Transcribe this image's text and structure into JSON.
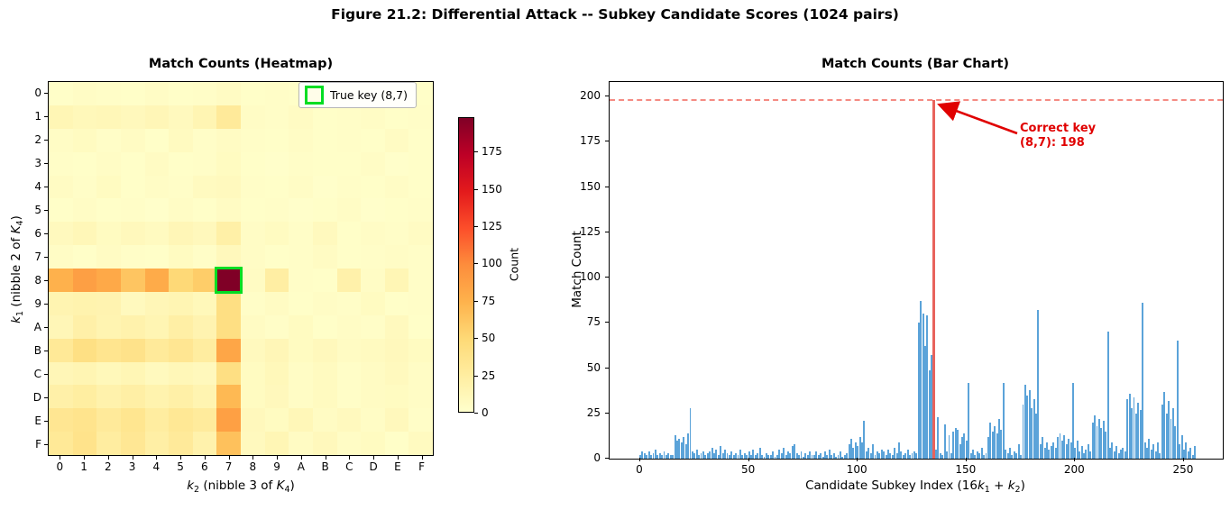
{
  "figure": {
    "title": "Figure 21.2: Differential Attack -- Subkey Candidate Scores (1024 pairs)"
  },
  "colors": {
    "bar_fill": "#5ba3d9",
    "vline": "#e8635c",
    "dashed_line": "#f4776e",
    "annotation_red": "#e00000",
    "true_key_green": "#00dd22",
    "colormap_name": "YlOrRd",
    "colormap_stops": [
      "#ffffcc",
      "#ffeda0",
      "#fed976",
      "#feb24c",
      "#fd8d3c",
      "#fc4e2a",
      "#e31a1c",
      "#bd0026",
      "#800026"
    ]
  },
  "chart_data": [
    {
      "type": "heatmap",
      "title": "Match Counts (Heatmap)",
      "xlabel_text": "k2 (nibble 3 of K4)",
      "ylabel_text": "k1 (nibble 2 of K4)",
      "xticks": [
        "0",
        "1",
        "2",
        "3",
        "4",
        "5",
        "6",
        "7",
        "8",
        "9",
        "A",
        "B",
        "C",
        "D",
        "E",
        "F"
      ],
      "yticks": [
        "0",
        "1",
        "2",
        "3",
        "4",
        "5",
        "6",
        "7",
        "8",
        "9",
        "A",
        "B",
        "C",
        "D",
        "E",
        "F"
      ],
      "vmin": 0,
      "vmax": 198,
      "colorbar": {
        "label": "Count",
        "ticks": [
          0,
          25,
          50,
          75,
          100,
          125,
          150,
          175
        ]
      },
      "legend": {
        "label": "True key (8,7)"
      },
      "true_key": {
        "k1": 8,
        "k2": 7,
        "value": 198
      },
      "values": [
        [
          2,
          4,
          3,
          2,
          4,
          2,
          3,
          5,
          2,
          3,
          2,
          4,
          2,
          3,
          2,
          2
        ],
        [
          13,
          10,
          11,
          9,
          12,
          8,
          14,
          28,
          4,
          3,
          5,
          2,
          3,
          4,
          2,
          3
        ],
        [
          4,
          6,
          3,
          5,
          2,
          7,
          3,
          5,
          3,
          2,
          4,
          2,
          3,
          2,
          5,
          2
        ],
        [
          3,
          2,
          4,
          2,
          5,
          2,
          3,
          6,
          2,
          1,
          3,
          2,
          2,
          4,
          1,
          2
        ],
        [
          5,
          3,
          6,
          2,
          4,
          3,
          7,
          8,
          3,
          2,
          4,
          1,
          3,
          2,
          4,
          2
        ],
        [
          2,
          4,
          2,
          3,
          1,
          4,
          2,
          5,
          2,
          3,
          1,
          2,
          4,
          1,
          2,
          3
        ],
        [
          8,
          11,
          6,
          9,
          7,
          12,
          9,
          21,
          4,
          6,
          3,
          8,
          2,
          4,
          3,
          5
        ],
        [
          4,
          2,
          5,
          3,
          2,
          6,
          3,
          9,
          4,
          2,
          3,
          5,
          2,
          3,
          4,
          3
        ],
        [
          75,
          87,
          80,
          62,
          79,
          49,
          57,
          198,
          5,
          23,
          3,
          2,
          19,
          4,
          13,
          3
        ],
        [
          15,
          17,
          16,
          8,
          12,
          14,
          10,
          42,
          3,
          5,
          2,
          4,
          3,
          6,
          2,
          3
        ],
        [
          12,
          20,
          15,
          18,
          14,
          22,
          16,
          42,
          5,
          3,
          6,
          2,
          4,
          3,
          8,
          2
        ],
        [
          30,
          41,
          35,
          38,
          28,
          33,
          25,
          82,
          8,
          12,
          6,
          9,
          5,
          7,
          9,
          6
        ],
        [
          12,
          14,
          10,
          13,
          8,
          11,
          9,
          42,
          6,
          10,
          4,
          7,
          3,
          5,
          8,
          4
        ],
        [
          20,
          24,
          18,
          22,
          17,
          21,
          15,
          70,
          6,
          9,
          4,
          7,
          3,
          5,
          6,
          4
        ],
        [
          33,
          36,
          28,
          34,
          25,
          31,
          27,
          86,
          9,
          6,
          11,
          5,
          8,
          4,
          9,
          3
        ],
        [
          30,
          37,
          25,
          32,
          22,
          28,
          18,
          65,
          8,
          13,
          5,
          9,
          4,
          6,
          2,
          7
        ]
      ]
    },
    {
      "type": "bar",
      "title": "Match Counts (Bar Chart)",
      "xlabel_text": "Candidate Subkey Index (16k1 + k2)",
      "ylabel": "Match Count",
      "xticks": [
        0,
        50,
        100,
        150,
        200,
        250
      ],
      "yticks": [
        0,
        25,
        50,
        75,
        100,
        125,
        150,
        175,
        200
      ],
      "xlim": [
        -14,
        268
      ],
      "ylim": [
        0,
        208
      ],
      "values_note": "bar heights = heatmap values flattened, bar index = 16*k1 + k2",
      "highlight": {
        "index": 135,
        "value": 198,
        "hline_y": 198
      },
      "annotation": {
        "line1": "Correct key",
        "line2": "(8,7): 198"
      }
    }
  ],
  "composite_labels": {
    "heat_xlabel": [
      {
        "t": "k",
        "i": 1
      },
      {
        "t": "2",
        "s": 1
      },
      {
        "t": " (nibble 3 of "
      },
      {
        "t": "K",
        "i": 1
      },
      {
        "t": "4",
        "s": 1
      },
      {
        "t": ")"
      }
    ],
    "heat_ylabel": [
      {
        "t": "k",
        "i": 1
      },
      {
        "t": "1",
        "s": 1
      },
      {
        "t": " (nibble 2 of "
      },
      {
        "t": "K",
        "i": 1
      },
      {
        "t": "4",
        "s": 1
      },
      {
        "t": ")"
      }
    ],
    "bar_xlabel": [
      {
        "t": "Candidate Subkey Index (16"
      },
      {
        "t": "k",
        "i": 1
      },
      {
        "t": "1",
        "s": 1
      },
      {
        "t": " + "
      },
      {
        "t": "k",
        "i": 1
      },
      {
        "t": "2",
        "s": 1
      },
      {
        "t": ")"
      }
    ]
  }
}
